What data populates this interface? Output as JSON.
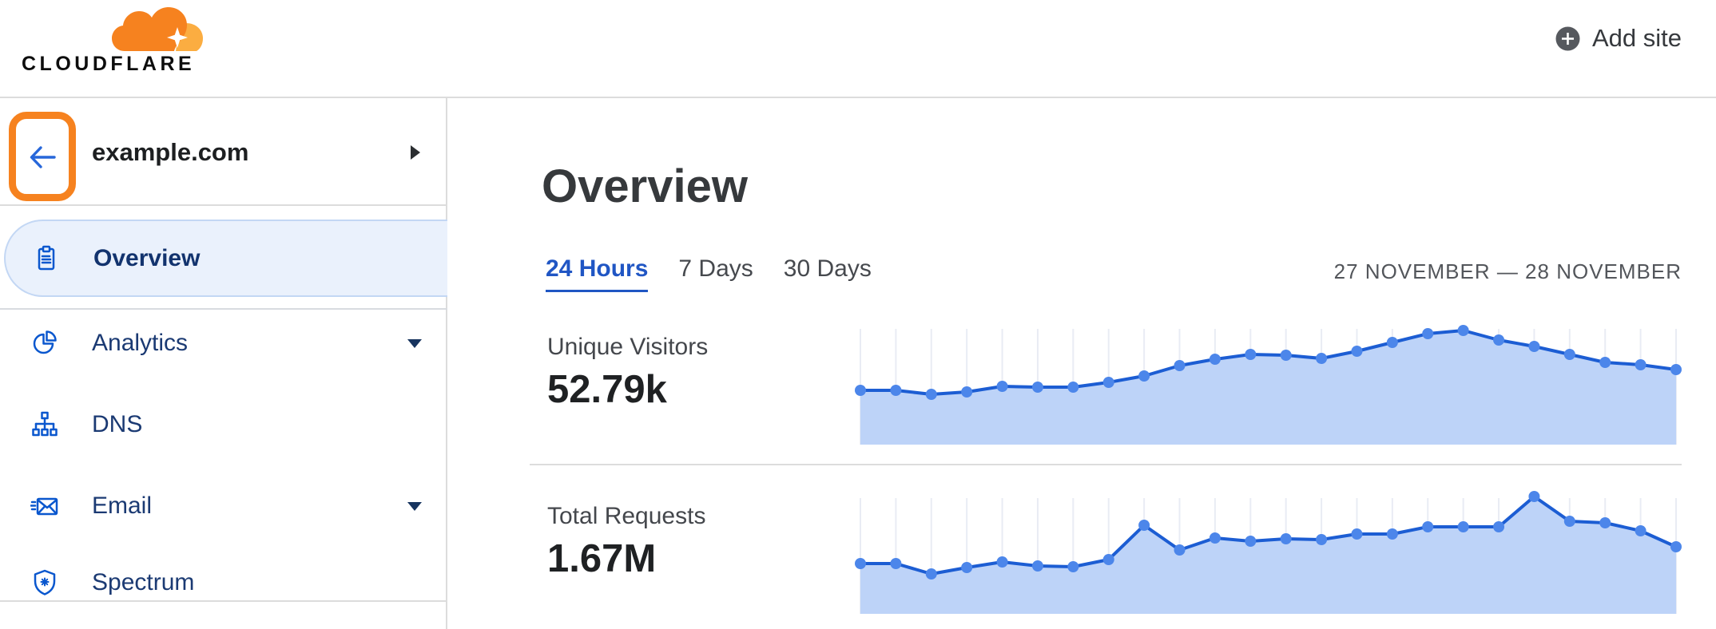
{
  "header": {
    "brand": "CLOUDFLARE",
    "add_site_label": "Add site"
  },
  "sidebar": {
    "site_name": "example.com",
    "items": [
      {
        "label": "Overview",
        "icon": "clipboard-icon",
        "active": true,
        "has_submenu": false
      },
      {
        "label": "Analytics",
        "icon": "pie-chart-icon",
        "active": false,
        "has_submenu": true
      },
      {
        "label": "DNS",
        "icon": "sitemap-icon",
        "active": false,
        "has_submenu": false
      },
      {
        "label": "Email",
        "icon": "envelope-icon",
        "active": false,
        "has_submenu": true
      },
      {
        "label": "Spectrum",
        "icon": "shield-icon",
        "active": false,
        "has_submenu": false
      }
    ],
    "annotation": {
      "type": "highlight-box",
      "color": "#F6821F",
      "target": "back-arrow-button"
    }
  },
  "main": {
    "title": "Overview",
    "time_tabs": [
      {
        "label": "24 Hours",
        "active": true
      },
      {
        "label": "7 Days",
        "active": false
      },
      {
        "label": "30 Days",
        "active": false
      }
    ],
    "date_range": "27 NOVEMBER — 28 NOVEMBER",
    "metrics": [
      {
        "label": "Unique Visitors",
        "value": "52.79k"
      },
      {
        "label": "Total Requests",
        "value": "1.67M"
      }
    ]
  },
  "colors": {
    "brand_orange": "#F6821F",
    "brand_orange_light": "#FBAD41",
    "icon_blue": "#0A57CE",
    "nav_text": "#1B3A73",
    "active_item_bg": "#EAF1FC",
    "active_item_border": "#C3D7F4",
    "tab_active_blue": "#2056C4",
    "chart_line": "#1C5DD3",
    "chart_dot": "#4C86EA",
    "chart_fill": "#BDD3F8",
    "chart_grid": "#E9ECF4"
  },
  "chart_data": [
    {
      "type": "area",
      "title": "Unique Visitors",
      "total_shown": "52.79k",
      "time_window": "24 Hours",
      "y_axis_shown": false,
      "value_note": "relative heights read from pixels; no numeric axis displayed in UI",
      "relative_values": [
        68,
        68,
        63,
        66,
        73,
        72,
        72,
        78,
        86,
        99,
        107,
        113,
        112,
        108,
        117,
        128,
        139,
        143,
        131,
        123,
        113,
        103,
        100,
        94
      ]
    },
    {
      "type": "area",
      "title": "Total Requests",
      "total_shown": "1.67M",
      "time_window": "24 Hours",
      "y_axis_shown": false,
      "value_note": "relative heights read from pixels; no numeric axis displayed in UI",
      "relative_values": [
        63,
        63,
        50,
        58,
        65,
        60,
        59,
        68,
        111,
        80,
        95,
        91,
        94,
        93,
        100,
        100,
        109,
        109,
        109,
        147,
        116,
        114,
        104,
        84
      ]
    }
  ]
}
